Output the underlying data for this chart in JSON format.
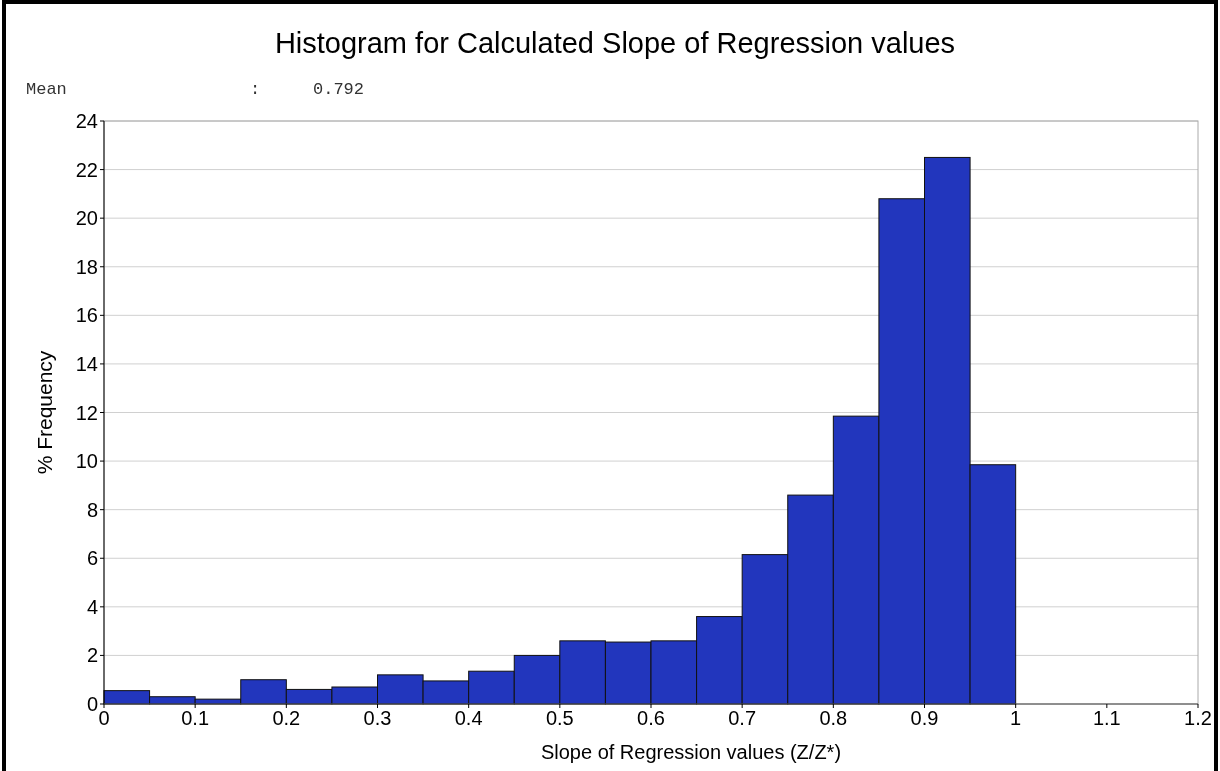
{
  "chart_data": {
    "type": "histogram",
    "title": "Histogram for Calculated Slope of Regression values",
    "xlabel": "Slope of Regression values (Z/Z*)",
    "ylabel": "% Frequency",
    "annotations": [
      "Mean : 0.792"
    ],
    "bins": [
      0,
      0.05,
      0.1,
      0.15,
      0.2,
      0.25,
      0.3,
      0.35,
      0.4,
      0.45,
      0.5,
      0.55,
      0.6,
      0.65,
      0.7,
      0.75,
      0.8,
      0.85,
      0.9,
      0.95,
      1
    ],
    "values": [
      0.55,
      0.3,
      0.2,
      1.0,
      0.6,
      0.7,
      1.2,
      0.95,
      1.35,
      2.0,
      2.6,
      2.55,
      2.6,
      3.6,
      6.15,
      8.6,
      11.85,
      20.8,
      22.5,
      9.85
    ],
    "color": "#2236bd",
    "xlim": [
      0,
      1.2
    ],
    "xticks": [
      0,
      0.1,
      0.2,
      0.3,
      0.4,
      0.5,
      0.6,
      0.7,
      0.8,
      0.9,
      1,
      1.1,
      1.2
    ],
    "ylim": [
      0,
      24
    ],
    "yticks": [
      0,
      2,
      4,
      6,
      8,
      10,
      12,
      14,
      16,
      18,
      20,
      22,
      24
    ],
    "grid": "y"
  }
}
